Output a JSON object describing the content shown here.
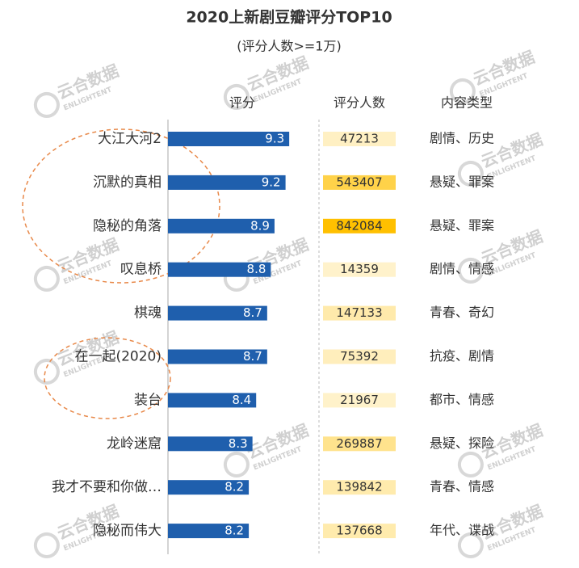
{
  "chart_data": {
    "type": "bar",
    "orientation": "horizontal",
    "title": "2020上新剧豆瓣评分TOP10",
    "subtitle": "(评分人数>=1万)",
    "headers": [
      "评分",
      "评分人数",
      "内容类型"
    ],
    "categories": [
      "大江大河2",
      "沉默的真相",
      "隐秘的角落",
      "叹息桥",
      "棋魂",
      "在一起(2020)",
      "装台",
      "龙岭迷窟",
      "我才不要和你做…",
      "隐秘而伟大"
    ],
    "values": [
      9.3,
      9.2,
      8.9,
      8.8,
      8.7,
      8.7,
      8.4,
      8.3,
      8.2,
      8.2
    ],
    "color": "#1f5fad",
    "xlim": [
      6,
      10
    ],
    "counts": [
      47213,
      543407,
      842084,
      14359,
      147133,
      75392,
      21967,
      269887,
      139842,
      137668
    ],
    "count_colors": [
      "#fff3cf",
      "#ffc000"
    ],
    "genres": [
      "剧情、历史",
      "悬疑、罪案",
      "悬疑、罪案",
      "剧情、情感",
      "青春、奇幻",
      "抗疫、剧情",
      "都市、情感",
      "悬疑、探险",
      "青春、情感",
      "年代、谍战"
    ],
    "watermark": {
      "cn": "云合数据",
      "en": "ENLIGHTENT"
    }
  }
}
